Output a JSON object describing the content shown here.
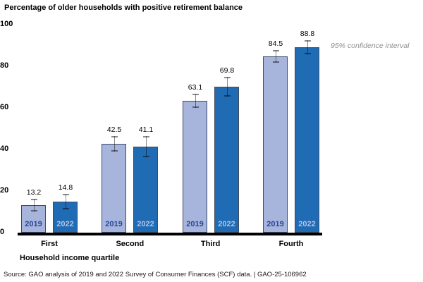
{
  "source_line": "Source: GAO analysis of 2019 and 2022 Survey of Consumer Finances (SCF) data.  |  GAO-25-106962",
  "chart_data": {
    "type": "bar",
    "title": "Percentage of older households with positive retirement balance",
    "xlabel": "Household income quartile",
    "ylabel": "",
    "annotation": "95% confidence interval",
    "categories": [
      "First",
      "Second",
      "Third",
      "Fourth"
    ],
    "series": [
      {
        "name": "2019",
        "values": [
          13.2,
          42.5,
          63.1,
          84.5
        ],
        "ci_halfwidth": [
          3.0,
          3.8,
          3.4,
          2.9
        ],
        "bar_color": "#a7b4dc",
        "border_color": "#3d4b66",
        "year_text_color": "#27479b"
      },
      {
        "name": "2022",
        "values": [
          14.8,
          41.1,
          69.8,
          88.8
        ],
        "ci_halfwidth": [
          3.7,
          5.0,
          4.6,
          3.4
        ],
        "bar_color": "#1f6cb5",
        "border_color": "#414b5e",
        "year_text_color": "#b6c4e8"
      }
    ],
    "ylim": [
      0,
      100
    ],
    "yticks": [
      0,
      20,
      40,
      60,
      80,
      100
    ],
    "grid": false,
    "legend_position": "none",
    "error_bar_style": "capped, 95% confidence interval",
    "baseline_color": "#000000",
    "annotation_color": "#909090"
  }
}
